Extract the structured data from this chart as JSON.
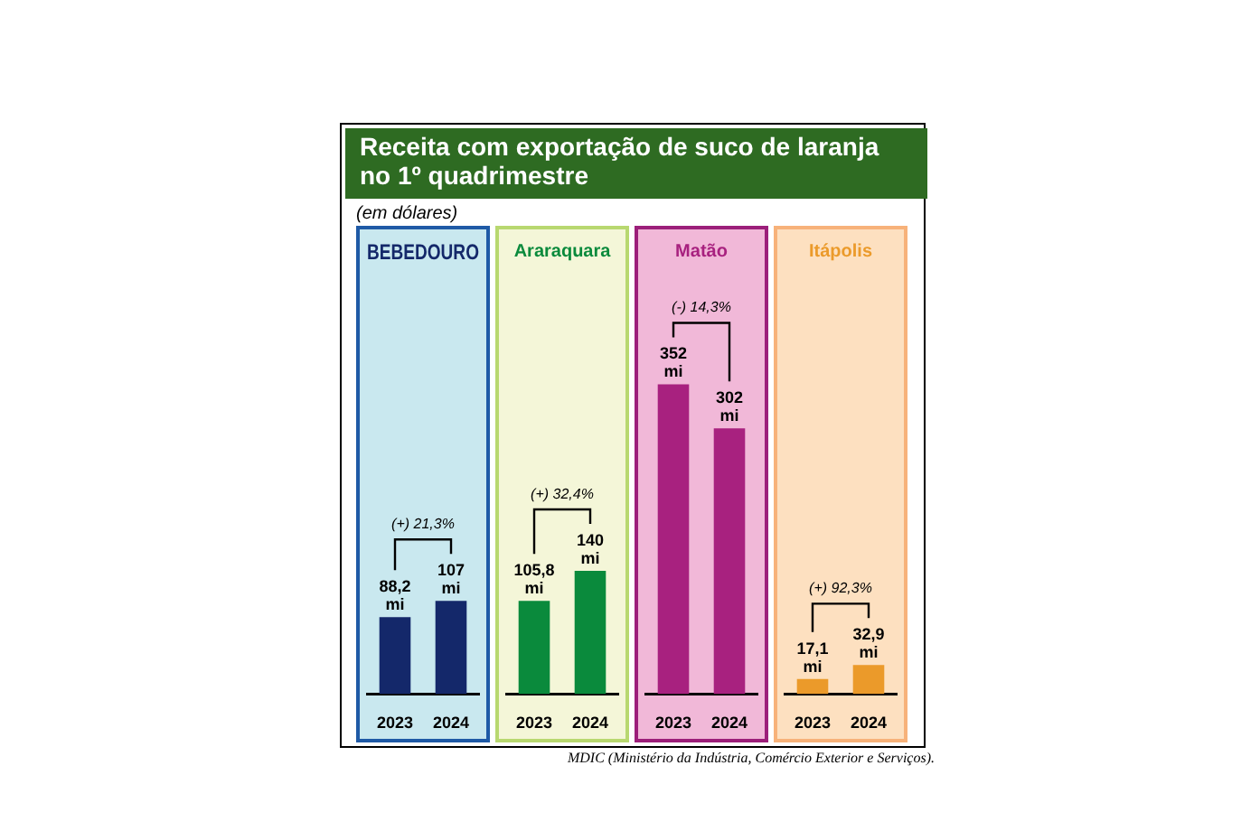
{
  "chart_data": [
    {
      "type": "other",
      "title": "Receita com exportação de suco de laranja no 1º quadrimestre",
      "subtitle": "(em dólares)",
      "annotations": [
        "MDIC (Ministério da Indústria, Comércio Exterior e Serviços)."
      ]
    },
    {
      "type": "bar",
      "title": "BEBEDOURO",
      "categories": [
        "2023",
        "2024"
      ],
      "values": [
        88.2,
        107
      ],
      "value_labels": [
        "88,2 mi",
        "107 mi"
      ],
      "color": "#14286a",
      "tick_labels": "x",
      "annotations": [
        "(+) 21,3%"
      ]
    },
    {
      "type": "bar",
      "title": "Araraquara",
      "categories": [
        "2023",
        "2024"
      ],
      "values": [
        105.8,
        140
      ],
      "value_labels": [
        "105,8 mi",
        "140 mi"
      ],
      "color": "#0a8a3c",
      "tick_labels": "x",
      "annotations": [
        "(+) 32,4%"
      ]
    },
    {
      "type": "bar",
      "title": "Matão",
      "categories": [
        "2023",
        "2024"
      ],
      "values": [
        352,
        302
      ],
      "value_labels": [
        "352 mi",
        "302 mi"
      ],
      "color": "#a8217f",
      "tick_labels": "x",
      "annotations": [
        "(-) 14,3%"
      ]
    },
    {
      "type": "bar",
      "title": "Itápolis",
      "categories": [
        "2023",
        "2024"
      ],
      "values": [
        17.1,
        32.9
      ],
      "value_labels": [
        "17,1 mi",
        "32,9 mi"
      ],
      "color": "#eb9a2a",
      "tick_labels": "x",
      "annotations": [
        "(+) 92,3%"
      ]
    }
  ]
}
